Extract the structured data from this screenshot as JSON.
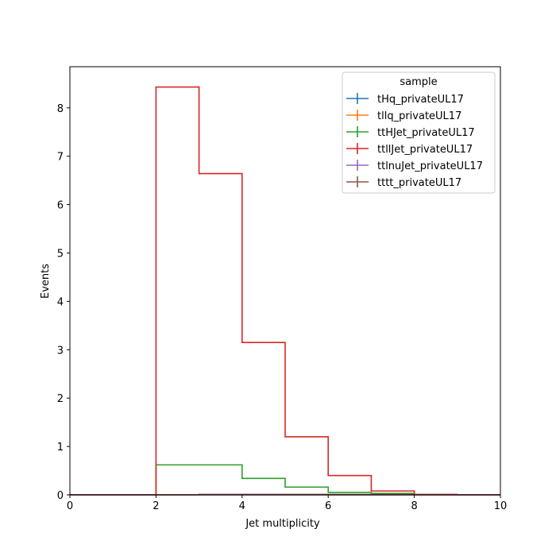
{
  "chart_data": {
    "type": "line",
    "subtype": "step-histogram",
    "xlabel": "Jet multiplicity",
    "ylabel": "Events",
    "xlim": [
      0,
      10
    ],
    "ylim": [
      0,
      8.85
    ],
    "x_ticks": [
      0,
      2,
      4,
      6,
      8,
      10
    ],
    "y_ticks": [
      0,
      1,
      2,
      3,
      4,
      5,
      6,
      7,
      8
    ],
    "grid": false,
    "legend": {
      "title": "sample",
      "placement": "top-right"
    },
    "bin_edges": [
      0,
      1,
      2,
      3,
      4,
      5,
      6,
      7,
      8,
      9,
      10
    ],
    "series": [
      {
        "name": "tHq_privateUL17",
        "color": "#1f77b4",
        "values": [
          0,
          0,
          0,
          0,
          0,
          0,
          0,
          0,
          0,
          0
        ]
      },
      {
        "name": "tllq_privateUL17",
        "color": "#ff7f0e",
        "values": [
          0,
          0,
          0,
          0,
          0,
          0,
          0,
          0,
          0,
          0
        ]
      },
      {
        "name": "ttHJet_privateUL17",
        "color": "#2ca02c",
        "values": [
          0,
          0,
          0.62,
          0.62,
          0.34,
          0.16,
          0.05,
          0.03,
          0,
          0
        ]
      },
      {
        "name": "ttllJet_privateUL17",
        "color": "#d62728",
        "values": [
          0,
          0,
          8.43,
          6.64,
          3.15,
          1.2,
          0.4,
          0.08,
          0.01,
          0
        ]
      },
      {
        "name": "ttlnuJet_privateUL17",
        "color": "#9467bd",
        "values": [
          0,
          0,
          0,
          0,
          0,
          0,
          0,
          0,
          0,
          0
        ]
      },
      {
        "name": "tttt_privateUL17",
        "color": "#8c564b",
        "values": [
          0,
          0,
          0,
          0.01,
          0.01,
          0.01,
          0.01,
          0.01,
          0,
          0
        ]
      }
    ]
  }
}
